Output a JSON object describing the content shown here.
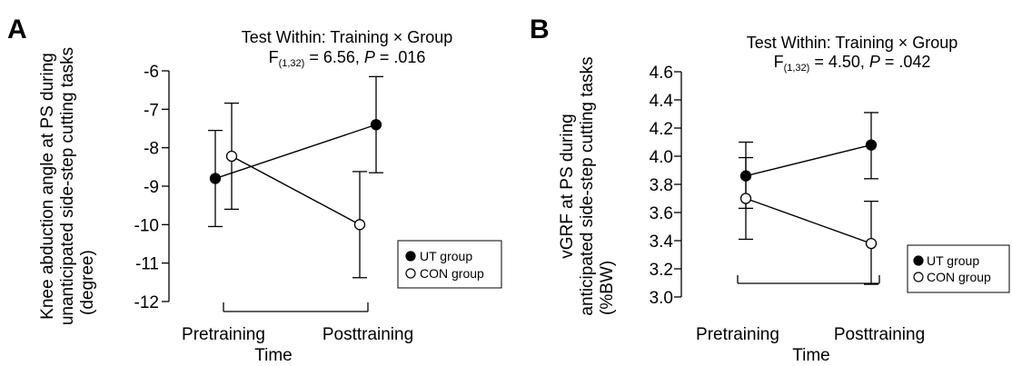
{
  "chart_data": [
    {
      "type": "line",
      "panel_letter": "A",
      "title_line1": "Test Within: Training × Group",
      "stat_F": "F",
      "stat_df": "(1,32)",
      "stat_value": " = 6.56, ",
      "stat_P": "P",
      "stat_p_value": " = .016",
      "ylabel_lines": [
        "Knee abduction angle at PS during",
        "unanticipated side-step cutting tasks",
        "(degree)"
      ],
      "xlabel": "Time",
      "categories": [
        "Pretraining",
        "Posttraining"
      ],
      "ylim": [
        -12,
        -6
      ],
      "yticks": [
        "-6",
        "-7",
        "-8",
        "-9",
        "-10",
        "-11",
        "-12"
      ],
      "ytick_values": [
        -6,
        -7,
        -8,
        -9,
        -10,
        -11,
        -12
      ],
      "legend_position": "lower-right",
      "series": [
        {
          "name": "UT group",
          "marker": "filled",
          "values": [
            -8.8,
            -7.4
          ],
          "err_lo": [
            -10.05,
            -8.65
          ],
          "err_hi": [
            -7.55,
            -6.15
          ]
        },
        {
          "name": "CON group",
          "marker": "open",
          "values": [
            -8.22,
            -10.0
          ],
          "err_lo": [
            -9.6,
            -11.38
          ],
          "err_hi": [
            -6.84,
            -8.62
          ]
        }
      ]
    },
    {
      "type": "line",
      "panel_letter": "B",
      "title_line1": "Test Within: Training × Group",
      "stat_F": "F",
      "stat_df": "(1,32)",
      "stat_value": " = 4.50, ",
      "stat_P": "P",
      "stat_p_value": " = .042",
      "ylabel_lines": [
        "vGRF at PS during",
        "anticipated side-step cutting tasks",
        "(%BW)"
      ],
      "xlabel": "Time",
      "categories": [
        "Pretraining",
        "Posttraining"
      ],
      "ylim": [
        3.0,
        4.6
      ],
      "yticks": [
        "4.6",
        "4.4",
        "4.2",
        "4.0",
        "3.8",
        "3.6",
        "3.4",
        "3.2",
        "3.0"
      ],
      "ytick_values": [
        4.6,
        4.4,
        4.2,
        4.0,
        3.8,
        3.6,
        3.4,
        3.2,
        3.0
      ],
      "legend_position": "lower-right",
      "series": [
        {
          "name": "UT group",
          "marker": "filled",
          "values": [
            3.86,
            4.08
          ],
          "err_lo": [
            3.63,
            3.84
          ],
          "err_hi": [
            4.1,
            4.31
          ]
        },
        {
          "name": "CON group",
          "marker": "open",
          "values": [
            3.7,
            3.38
          ],
          "err_lo": [
            3.41,
            3.09
          ],
          "err_hi": [
            3.99,
            3.68
          ]
        }
      ]
    }
  ]
}
